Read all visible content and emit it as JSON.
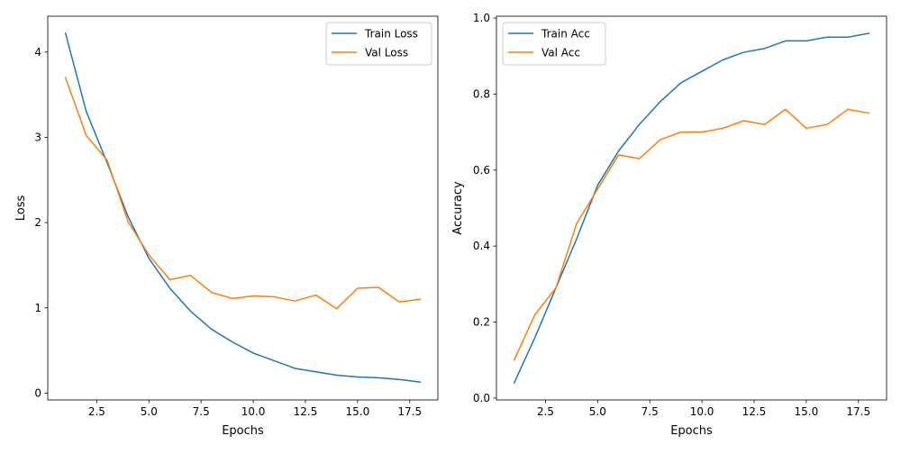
{
  "chart_data": [
    {
      "type": "line",
      "title": "",
      "xlabel": "Epochs",
      "ylabel": "Loss",
      "xlim": [
        0.15,
        18.85
      ],
      "ylim": [
        -0.08,
        4.42
      ],
      "xticks": [
        2.5,
        5.0,
        7.5,
        10.0,
        12.5,
        15.0,
        17.5
      ],
      "xtick_labels": [
        "2.5",
        "5.0",
        "7.5",
        "10.0",
        "12.5",
        "15.0",
        "17.5"
      ],
      "yticks": [
        0,
        1,
        2,
        3,
        4
      ],
      "ytick_labels": [
        "0",
        "1",
        "2",
        "3",
        "4"
      ],
      "grid": false,
      "legend_position": "top-right",
      "x": [
        1,
        2,
        3,
        4,
        5,
        6,
        7,
        8,
        9,
        10,
        11,
        12,
        13,
        14,
        15,
        16,
        17,
        18
      ],
      "series": [
        {
          "name": "Train Loss",
          "color": "#1f77b4",
          "values": [
            4.22,
            3.3,
            2.7,
            2.07,
            1.58,
            1.23,
            0.96,
            0.75,
            0.6,
            0.47,
            0.38,
            0.29,
            0.25,
            0.21,
            0.19,
            0.18,
            0.16,
            0.13
          ]
        },
        {
          "name": "Val Loss",
          "color": "#ff7f0e",
          "values": [
            3.7,
            3.02,
            2.73,
            2.01,
            1.62,
            1.33,
            1.38,
            1.18,
            1.11,
            1.14,
            1.13,
            1.08,
            1.15,
            0.99,
            1.23,
            1.24,
            1.07,
            1.1
          ]
        }
      ]
    },
    {
      "type": "line",
      "title": "",
      "xlabel": "Epochs",
      "ylabel": "Accuracy",
      "xlim": [
        0.15,
        18.85
      ],
      "ylim": [
        -0.005,
        1.005
      ],
      "xticks": [
        2.5,
        5.0,
        7.5,
        10.0,
        12.5,
        15.0,
        17.5
      ],
      "xtick_labels": [
        "2.5",
        "5.0",
        "7.5",
        "10.0",
        "12.5",
        "15.0",
        "17.5"
      ],
      "yticks": [
        0.0,
        0.2,
        0.4,
        0.6,
        0.8,
        1.0
      ],
      "ytick_labels": [
        "0.0",
        "0.2",
        "0.4",
        "0.6",
        "0.8",
        "1.0"
      ],
      "grid": false,
      "legend_position": "top-left",
      "x": [
        1,
        2,
        3,
        4,
        5,
        6,
        7,
        8,
        9,
        10,
        11,
        12,
        13,
        14,
        15,
        16,
        17,
        18
      ],
      "series": [
        {
          "name": "Train Acc",
          "color": "#1f77b4",
          "values": [
            0.04,
            0.16,
            0.29,
            0.42,
            0.56,
            0.65,
            0.72,
            0.78,
            0.83,
            0.86,
            0.89,
            0.91,
            0.92,
            0.94,
            0.94,
            0.95,
            0.95,
            0.96
          ]
        },
        {
          "name": "Val Acc",
          "color": "#ff7f0e",
          "values": [
            0.1,
            0.22,
            0.29,
            0.46,
            0.55,
            0.64,
            0.63,
            0.68,
            0.7,
            0.7,
            0.71,
            0.73,
            0.72,
            0.76,
            0.71,
            0.72,
            0.76,
            0.75
          ]
        }
      ]
    }
  ]
}
